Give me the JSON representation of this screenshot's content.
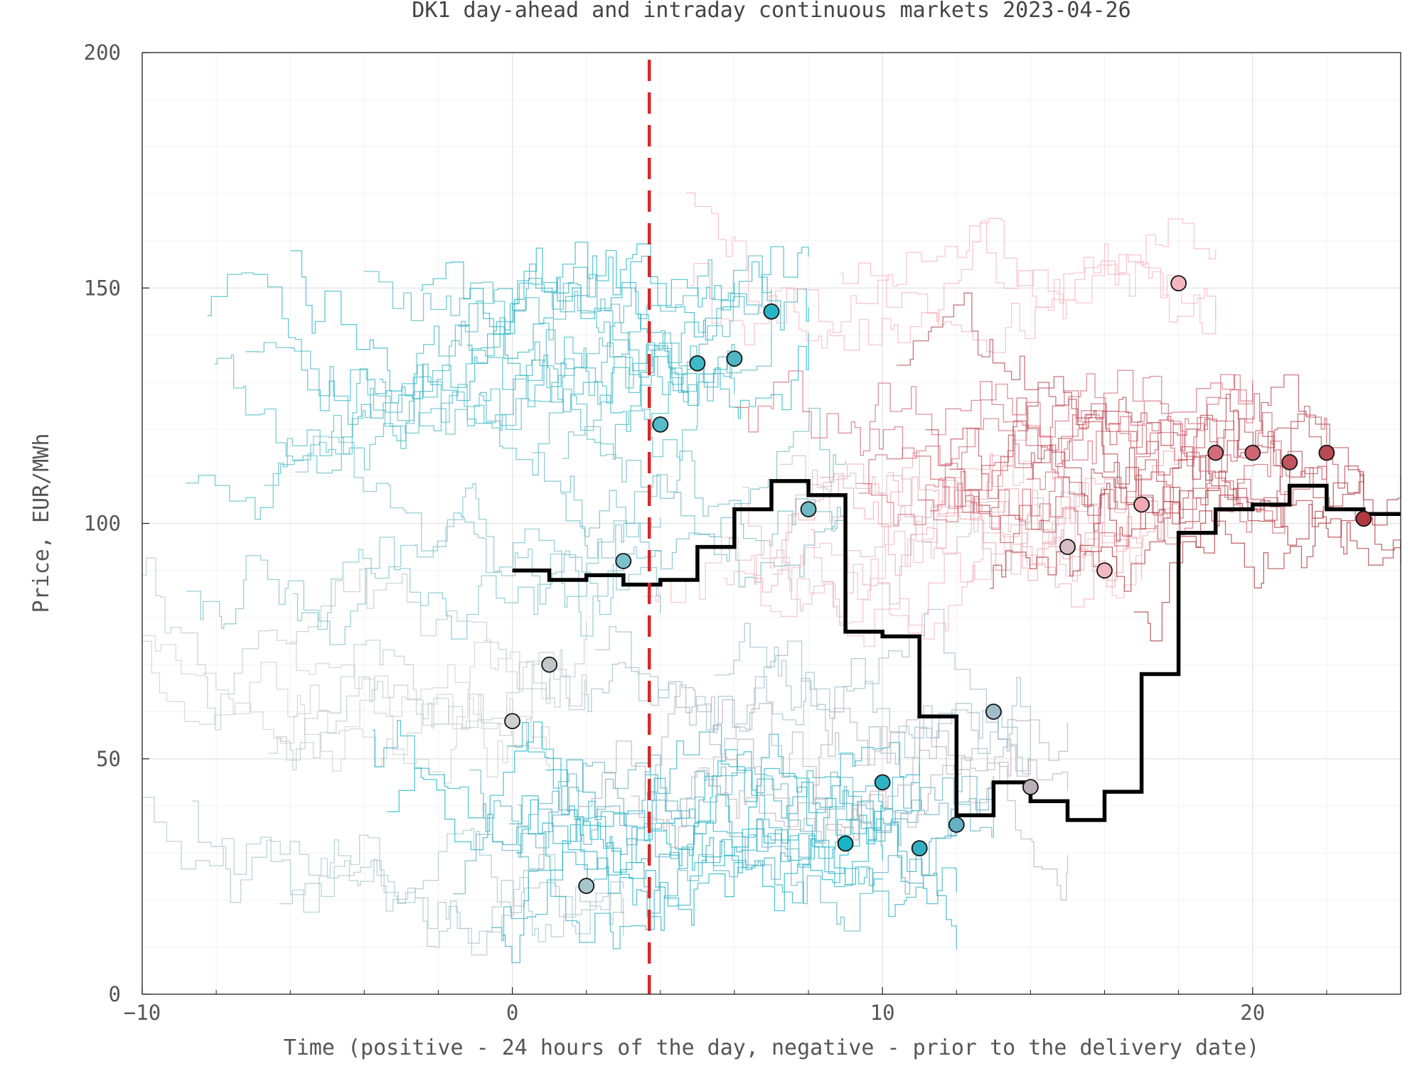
{
  "chart_data": {
    "type": "line",
    "title": "DK1 day-ahead and intraday continuous markets 2023-04-26",
    "xlabel": "Time (positive - 24 hours of the day, negative - prior to the delivery date)",
    "ylabel": "Price, EUR/MWh",
    "xlim": [
      -10,
      24
    ],
    "ylim": [
      0,
      200
    ],
    "xticks": [
      -10,
      0,
      10,
      20
    ],
    "xtick_labels": [
      "−10",
      "0",
      "10",
      "20"
    ],
    "yticks": [
      0,
      50,
      100,
      150,
      200
    ],
    "yticks_labels": [
      "0",
      "50",
      "100",
      "150",
      "200"
    ],
    "grid": true,
    "legend": "none",
    "vline": {
      "x": 3.7,
      "color": "#d62728",
      "style": "dashed"
    },
    "day_ahead": {
      "color": "#000000",
      "hours": [
        0,
        1,
        2,
        3,
        4,
        5,
        6,
        7,
        8,
        9,
        10,
        11,
        12,
        13,
        14,
        15,
        16,
        17,
        18,
        19,
        20,
        21,
        22,
        23
      ],
      "values": [
        90,
        88,
        89,
        87,
        88,
        95,
        103,
        109,
        106,
        77,
        76,
        59,
        38,
        45,
        41,
        37,
        43,
        68,
        98,
        103,
        104,
        108,
        103,
        102
      ]
    },
    "intraday_points": {
      "hours": [
        0,
        1,
        2,
        3,
        4,
        5,
        6,
        7,
        8,
        9,
        10,
        11,
        12,
        13,
        14,
        15,
        16,
        17,
        18,
        19,
        20,
        21,
        22,
        23
      ],
      "values": [
        58,
        70,
        23,
        92,
        121,
        134,
        135,
        145,
        103,
        32,
        45,
        31,
        36,
        60,
        44,
        95,
        90,
        104,
        151,
        115,
        115,
        113,
        115,
        101
      ],
      "colors": [
        "#cfcfcf",
        "#bfc7c9",
        "#a7c6cc",
        "#79c2cc",
        "#52bdc9",
        "#3fbac7",
        "#52b5c3",
        "#2ab6c7",
        "#6fb9c6",
        "#17b5c6",
        "#2db2c4",
        "#31b0c4",
        "#65b0c3",
        "#9fbcc9",
        "#bcb0b8",
        "#d8bcc6",
        "#f1b9c3",
        "#f2a9b3",
        "#f5b6c0",
        "#d46d79",
        "#cd6670",
        "#c2545e",
        "#b64b53",
        "#b2393f"
      ]
    }
  }
}
